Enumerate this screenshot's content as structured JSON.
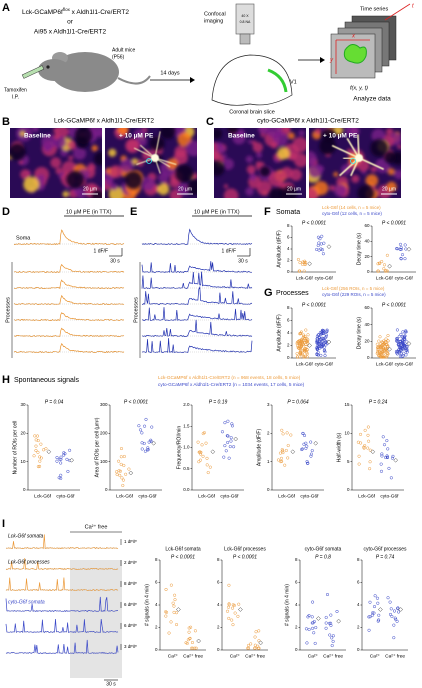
{
  "panel_labels": {
    "a": "A",
    "b": "B",
    "c": "C",
    "d": "D",
    "e": "E",
    "f": "F",
    "g": "G",
    "h": "H",
    "i": "I"
  },
  "a": {
    "line1": "Lck-GCaMP6f",
    "flox": "flox",
    "line1_rest": " x Aldh1l1-Cre/ERT2",
    "or": "or",
    "line2": "Ai95 x Aldh1l1-Cre/ERT2",
    "mouse": "Adult mice",
    "age": "(P56)",
    "tamoxifen": "Tamoxifen",
    "ip": "I.P.",
    "days": "14 days",
    "confocal": "Confocal",
    "imaging": "imaging",
    "objective_1": "40 X",
    "objective_2": "0.8 NA",
    "slice": "Coronal brain slice",
    "v1": "V1",
    "time_series": "Time series",
    "x": "x",
    "y": "y",
    "t": "t",
    "function": "f(x, y, t)",
    "analyze": "Analyze data"
  },
  "b": {
    "title": "Lck-GCaMP6f x Aldh1l1-Cre/ERT2",
    "left": "Baseline",
    "right": "+ 10 µM PE",
    "scale_left": "20 µm",
    "scale_right": "20 µm"
  },
  "c": {
    "title": "cyto-GCaMP6f x Aldh1l1-Cre/ERT2",
    "left": "Baseline",
    "right": "+ 10 µM PE",
    "scale_left": "20 µm",
    "scale_right": "20 µm"
  },
  "d": {
    "drug": "10 µM PE (in TTX)",
    "soma": "Soma",
    "scale_y": "1 dF/F",
    "scale_x": "30 s",
    "processes": "Processes"
  },
  "e": {
    "drug": "10 µM PE (in TTX)",
    "scale_y": "1 dF/F",
    "scale_x": "30 s",
    "processes": "Processes"
  },
  "f": {
    "title": "Somata",
    "legend_1": "Lck-G6f (14 cells, n = 5 mice)",
    "legend_2": "cyto-G6f (12 cells, n = 5 mice)",
    "plots": [
      {
        "ylabel": "Amplitude (dF/F)",
        "yticks": [
          "0",
          "2",
          "4",
          "6",
          "8"
        ],
        "p": "P < 0.0001",
        "xlabels": [
          "Lck-G6f",
          "cyto-G6f"
        ]
      },
      {
        "ylabel": "Decay time (s)",
        "yticks": [
          "0",
          "20",
          "40",
          "60"
        ],
        "p": "P < 0.0001",
        "xlabels": [
          "Lck-G6f",
          "cyto-G6f"
        ]
      }
    ]
  },
  "g": {
    "title": "Processes",
    "legend_1": "Lck-G6f (256 ROIs, n = 5 mice)",
    "legend_2": "cyto-G6f (229 ROIs, n = 5 mice)",
    "plots": [
      {
        "ylabel": "Amplitude (dF/F)",
        "yticks": [
          "0",
          "2",
          "4",
          "6",
          "8"
        ],
        "p": "P < 0.0001",
        "xlabels": [
          "Lck-G6f",
          "cyto-G6f"
        ]
      },
      {
        "ylabel": "Decay time (s)",
        "yticks": [
          "0",
          "20",
          "40",
          "60"
        ],
        "p": "P < 0.0001",
        "xlabels": [
          "Lck-G6f",
          "cyto-G6f"
        ]
      }
    ]
  },
  "h": {
    "title": "Spontaneous signals",
    "legend_1": "Lck-GCaMP6f x Aldh1l1-Cre/ERT2 (n = 968 events, 18 cells, 5 mice)",
    "legend_2": "cyto-GCaMP6f x Aldh1l1-Cre/ERT2 (n = 1034 events, 17 cells, 5 mice)",
    "plots": [
      {
        "ylabel": "Number of ROIs per cell",
        "yticks": [
          "0",
          "10",
          "20",
          "30"
        ],
        "p": "P = 0.04",
        "xlabels": [
          "Lck-G6f",
          "cyto-G6f"
        ]
      },
      {
        "ylabel": "Area of ROIs per cell (µm²)",
        "yticks": [
          "0",
          "100",
          "200",
          "300"
        ],
        "p": "P < 0.0001",
        "xlabels": [
          "Lck-G6f",
          "cyto-G6f"
        ]
      },
      {
        "ylabel": "Frequency/ROI/min",
        "yticks": [
          "0.0",
          "0.5",
          "1.0",
          "1.5",
          "2.0"
        ],
        "p": "P = 0.19",
        "xlabels": [
          "Lck-G6f",
          "cyto-G6f"
        ]
      },
      {
        "ylabel": "Amplitude (dF/F)",
        "yticks": [
          "0",
          "1",
          "2",
          "3"
        ],
        "p": "P = 0.064",
        "xlabels": [
          "Lck-G6f",
          "cyto-G6f"
        ]
      },
      {
        "ylabel": "Half-width (s)",
        "yticks": [
          "0",
          "5",
          "10",
          "15"
        ],
        "p": "P = 0.24",
        "xlabels": [
          "Lck-G6f",
          "cyto-G6f"
        ]
      }
    ]
  },
  "i": {
    "ca_free": "Ca²⁺ free",
    "lck_somata": "Lck-G6f somata",
    "lck_processes": "Lck-G6f processes",
    "cyto_somata": "cyto-G6f somata",
    "cyto_processes": "cyto-G6f processes",
    "trace_scales": [
      "1 dF/F",
      "2 dF/F",
      "8 dF/F",
      "6 dF/F",
      "6 dF/F",
      "3 dF/F"
    ],
    "scale_x": "30 s",
    "plots": [
      {
        "title": "Lck-G6f somata",
        "ylabel": "# signals (in 4 min)",
        "yticks": [
          "0",
          "2",
          "4",
          "6",
          "8"
        ],
        "p": "P < 0.0001",
        "xlabels": [
          "Ca²⁺",
          "Ca²⁺ free"
        ]
      },
      {
        "title": "Lck-G6f processes",
        "yticks": [
          "0",
          "2",
          "4",
          "6",
          "8"
        ],
        "p": "P < 0.0001",
        "xlabels": [
          "Ca²⁺",
          "Ca²⁺ free"
        ]
      },
      {
        "title": "cyto-G6f somata",
        "ylabel": "# signals (in 4 min)",
        "yticks": [
          "0",
          "2",
          "4",
          "6",
          "8"
        ],
        "p": "P = 0.8",
        "xlabels": [
          "Ca²⁺",
          "Ca²⁺ free"
        ]
      },
      {
        "title": "cyto-G6f processes",
        "yticks": [
          "0",
          "2",
          "4",
          "6",
          "8"
        ],
        "p": "P = 0.74",
        "xlabels": [
          "Ca²⁺",
          "Ca²⁺ free"
        ]
      }
    ]
  }
}
